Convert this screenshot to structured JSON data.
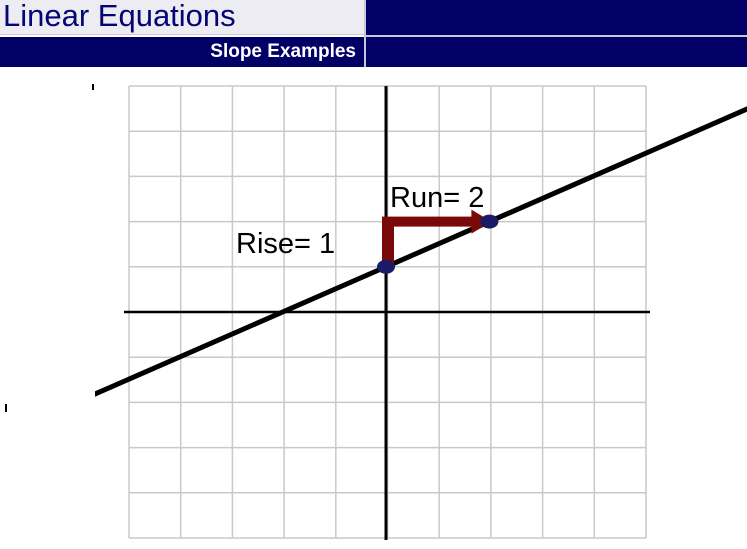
{
  "header": {
    "title": "Linear Equations",
    "subtitle": "Slope Examples"
  },
  "diagram": {
    "grid_cells_x": 10,
    "grid_cells_y": 10,
    "x_range": [
      -5,
      5
    ],
    "y_range": [
      -5,
      5
    ],
    "line": {
      "slope": 0.5,
      "intercept": 1
    },
    "points": [
      {
        "name": "y-intercept",
        "x": 0,
        "y": 1
      },
      {
        "name": "second-point",
        "x": 2,
        "y": 2
      }
    ],
    "rise_label": "Rise= 1",
    "run_label": "Run= 2",
    "colors": {
      "grid": "#c9c9c9",
      "axes": "#000000",
      "line": "#000000",
      "arrow": "#7a0a0a",
      "point": "#1a1a66"
    }
  }
}
